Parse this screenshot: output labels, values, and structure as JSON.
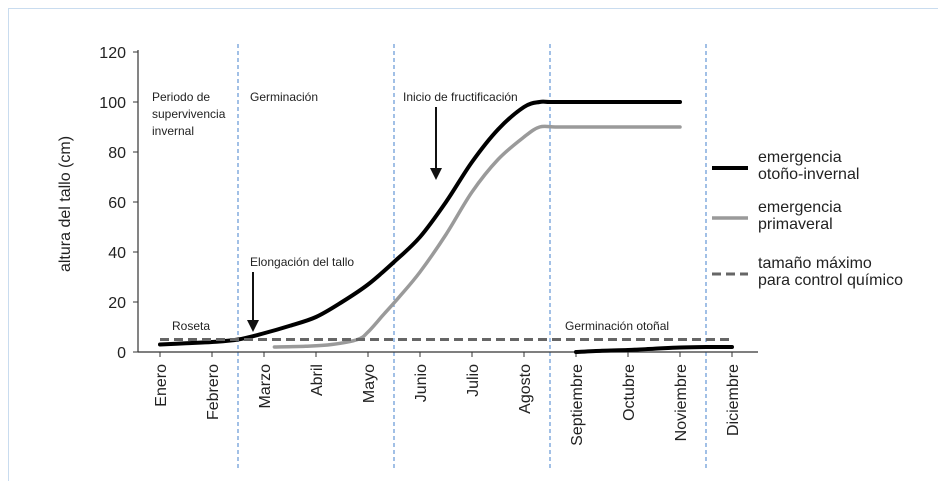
{
  "chart_data": {
    "type": "line",
    "ylabel": "altura del tallo (cm)",
    "ylim": [
      0,
      120
    ],
    "yticks": [
      "0",
      "20",
      "40",
      "60",
      "80",
      "100",
      "120"
    ],
    "categories": [
      "Enero",
      "Febrero",
      "Marzo",
      "Abril",
      "Mayo",
      "Junio",
      "Julio",
      "Agosto",
      "Septiembre",
      "Octubre",
      "Noviembre",
      "Diciembre"
    ],
    "series": [
      {
        "name": "emergencia otoño-invernal",
        "color": "#000000",
        "segments": [
          [
            [
              0,
              3
            ],
            [
              0.5,
              3.5
            ],
            [
              1,
              4
            ],
            [
              1.5,
              5
            ],
            [
              2,
              7.5
            ],
            [
              2.5,
              10.5
            ],
            [
              3,
              14
            ],
            [
              3.5,
              20
            ],
            [
              4,
              27
            ],
            [
              4.5,
              36
            ],
            [
              5,
              46
            ],
            [
              5.5,
              60
            ],
            [
              6,
              76
            ],
            [
              6.5,
              89
            ],
            [
              7,
              98
            ],
            [
              7.3,
              100
            ],
            [
              7.5,
              100
            ],
            [
              8,
              100
            ],
            [
              9,
              100
            ],
            [
              10,
              100
            ]
          ],
          [
            [
              8,
              0
            ],
            [
              8.5,
              0.5
            ],
            [
              9,
              0.8
            ],
            [
              9.5,
              1.3
            ],
            [
              10,
              1.8
            ],
            [
              10.5,
              2
            ],
            [
              11,
              2
            ]
          ]
        ]
      },
      {
        "name": "emergencia primaveral",
        "color": "#9a9a9a",
        "segments": [
          [
            [
              2.2,
              2
            ],
            [
              2.8,
              2.3
            ],
            [
              3.3,
              3
            ],
            [
              3.8,
              5
            ],
            [
              4,
              8
            ],
            [
              4.3,
              15
            ],
            [
              4.6,
              22
            ],
            [
              5,
              32
            ],
            [
              5.5,
              47
            ],
            [
              6,
              64
            ],
            [
              6.5,
              77
            ],
            [
              7,
              86
            ],
            [
              7.3,
              90
            ],
            [
              7.6,
              90
            ],
            [
              8,
              90
            ],
            [
              9,
              90
            ],
            [
              10,
              90
            ]
          ]
        ]
      },
      {
        "name": "tamaño máximo para control químico",
        "color": "#666666",
        "dashed": true,
        "segments": [
          [
            [
              0,
              5
            ],
            [
              11,
              5
            ]
          ]
        ]
      }
    ],
    "legend_position": "right",
    "vertical_dividers": [
      1.5,
      4.5,
      7.5,
      10.5
    ],
    "annotations": [
      {
        "lines": [
          "Periodo de",
          "supervivencia",
          "invernal"
        ]
      },
      {
        "lines": [
          "Germinación"
        ]
      },
      {
        "lines": [
          "Inicio de fructificación"
        ]
      },
      {
        "lines": [
          "Elongación del tallo"
        ]
      },
      {
        "lines": [
          "Roseta"
        ]
      },
      {
        "lines": [
          "Germinación otoñal"
        ]
      }
    ],
    "legend": [
      [
        "emergencia",
        "otoño-invernal"
      ],
      [
        "emergencia",
        "primaveral"
      ],
      [
        "tamaño máximo",
        "para control químico"
      ]
    ]
  }
}
